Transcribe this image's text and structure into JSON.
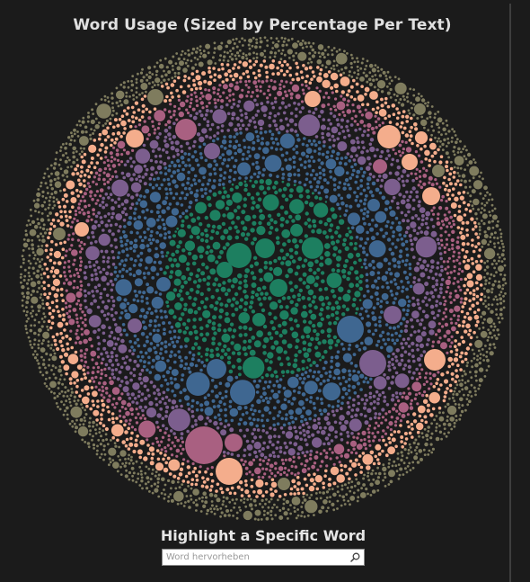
{
  "title": "Word Usage (Sized by Percentage Per Text)",
  "filter": {
    "heading": "Highlight a Specific Word",
    "placeholder": "Word hervorheben",
    "icon": "search-icon"
  },
  "chart_data": {
    "type": "packed-bubble",
    "encoding": "circle size = percentage of word usage per text; color = text group",
    "grid": false,
    "legend": "none",
    "groups": [
      {
        "ring": "center",
        "color": "#1d7f60"
      },
      {
        "ring": 2,
        "color": "#3f6791"
      },
      {
        "ring": 3,
        "color": "#7c5e8e"
      },
      {
        "ring": 4,
        "color": "#a96081"
      },
      {
        "ring": 5,
        "color": "#f4ad8c"
      },
      {
        "ring": "outer",
        "color": "#7f7c5e"
      }
    ]
  }
}
